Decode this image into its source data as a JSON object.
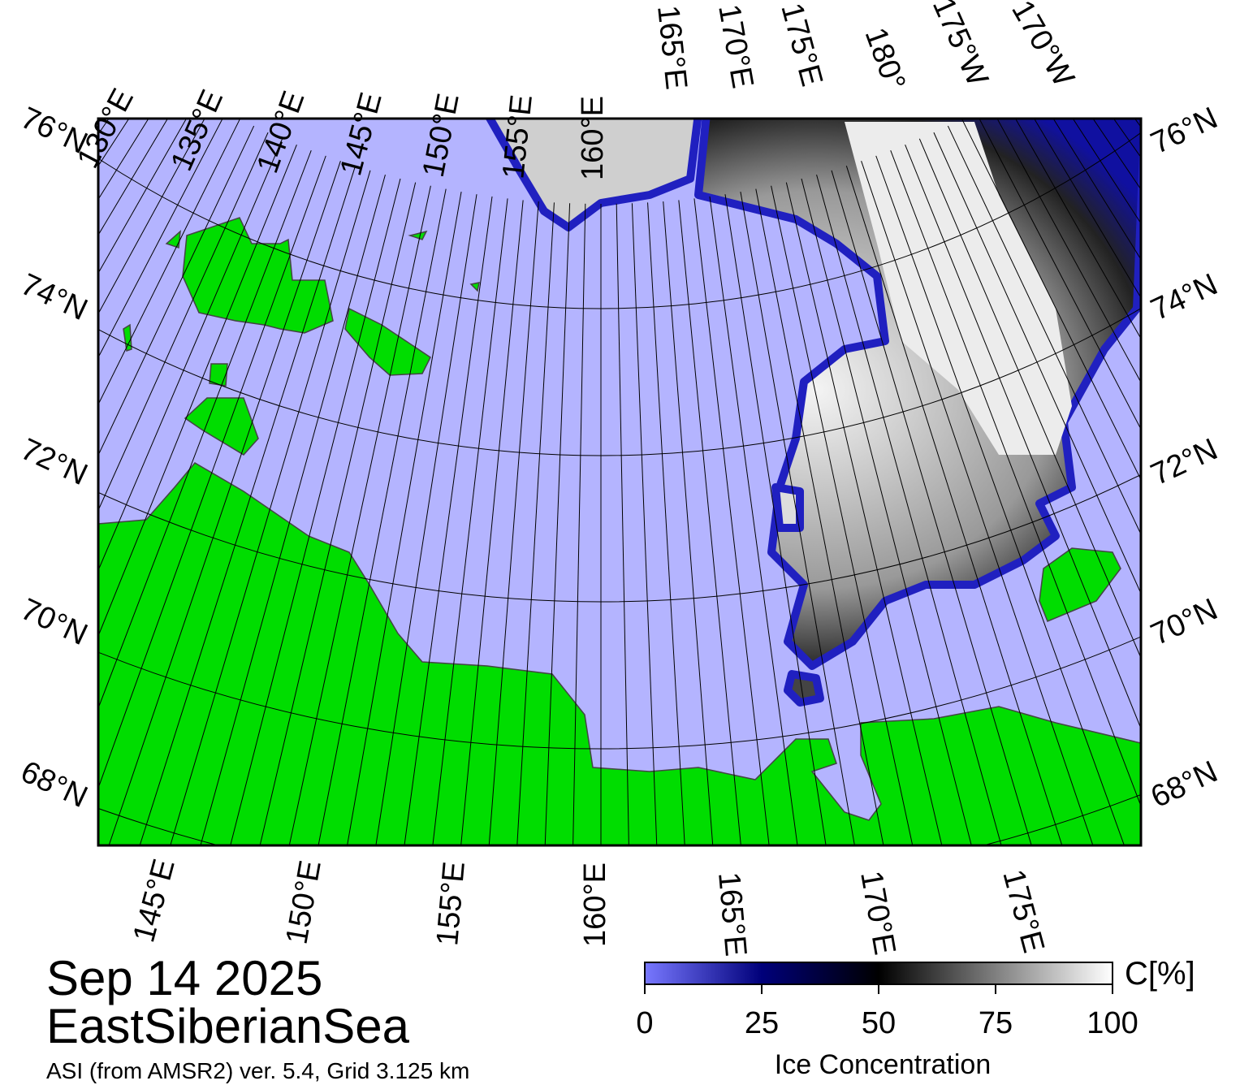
{
  "map": {
    "date": "Sep 14 2025",
    "region": "EastSiberianSea",
    "source": "ASI (from AMSR2) ver. 5.4,  Grid 3.125 km",
    "top_longitude_labels": [
      "130°E",
      "135°E",
      "140°E",
      "145°E",
      "150°E",
      "155°E",
      "160°E",
      "165°E",
      "170°E",
      "175°E",
      "180°",
      "175°W",
      "170°W"
    ],
    "bottom_longitude_labels": [
      "145°E",
      "150°E",
      "155°E",
      "160°E",
      "165°E",
      "170°E",
      "175°E"
    ],
    "left_latitude_labels": [
      "76°N",
      "74°N",
      "72°N",
      "70°N",
      "68°N"
    ],
    "right_latitude_labels": [
      "76°N",
      "74°N",
      "72°N",
      "70°N",
      "68°N"
    ]
  },
  "colorbar": {
    "label": "Ice Concentration",
    "unit": "C[%]",
    "range": [
      0,
      100
    ],
    "ticks": [
      0,
      25,
      50,
      75,
      100
    ]
  }
}
